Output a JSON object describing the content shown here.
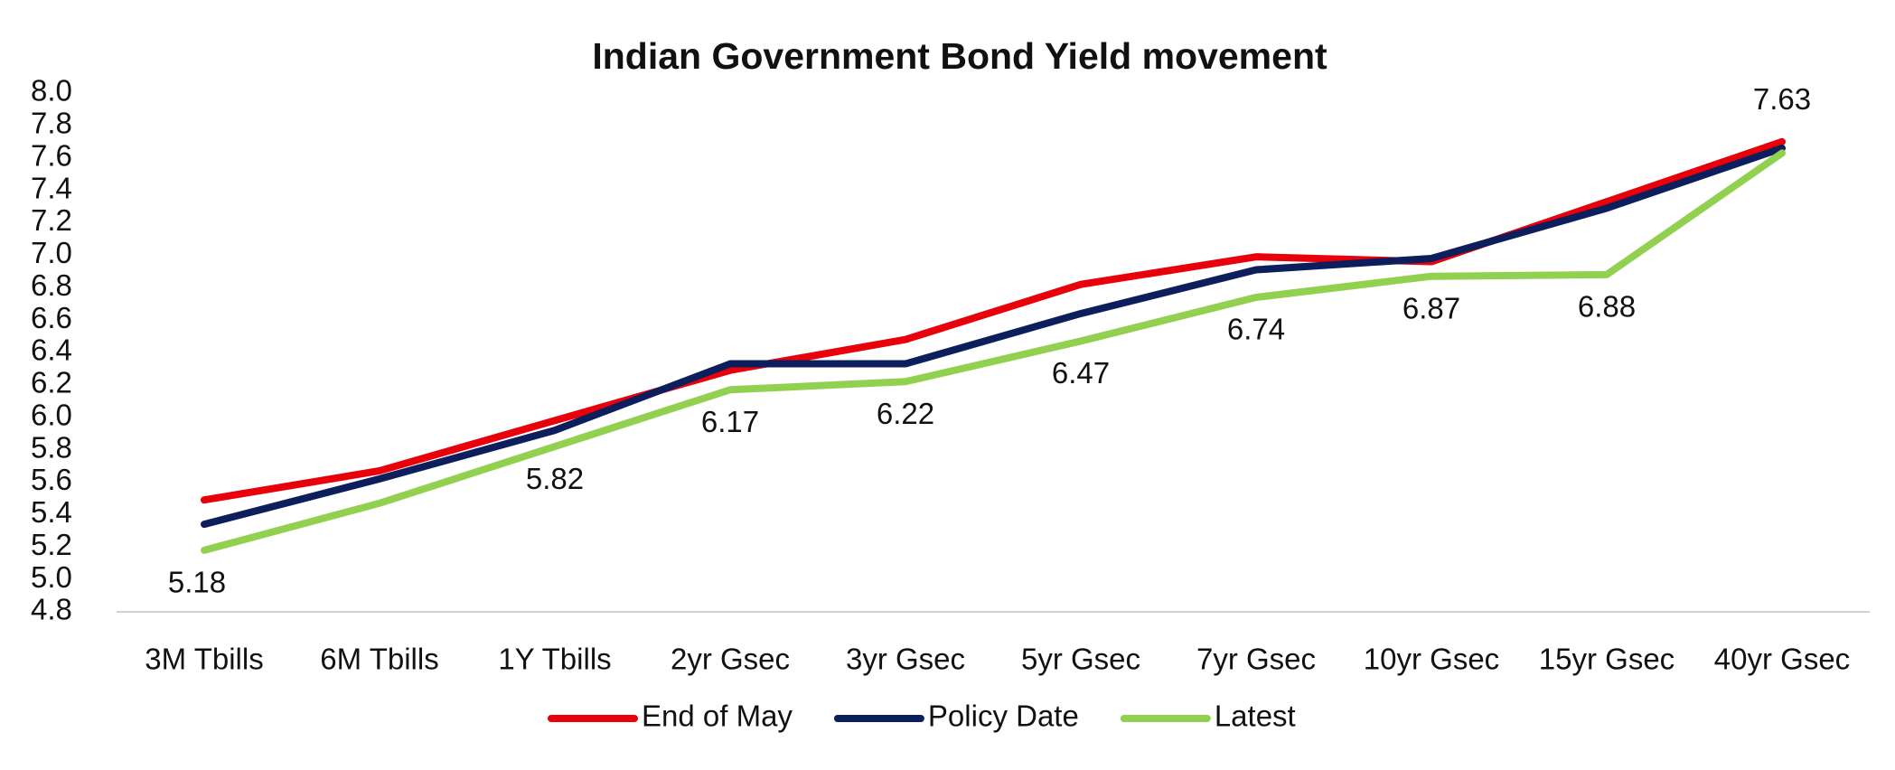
{
  "chart_data": {
    "type": "line",
    "title": "Indian Government Bond Yield movement",
    "categories": [
      "3M Tbills",
      "6M Tbills",
      "1Y Tbills",
      "2yr Gsec",
      "3yr Gsec",
      "5yr Gsec",
      "7yr Gsec",
      "10yr Gsec",
      "15yr Gsec",
      "40yr Gsec"
    ],
    "series": [
      {
        "name": "End of May",
        "color": "#e8000b",
        "values": [
          5.49,
          5.67,
          5.98,
          6.29,
          6.48,
          6.82,
          6.99,
          6.96,
          7.33,
          7.7
        ]
      },
      {
        "name": "Policy Date",
        "color": "#0c1f5c",
        "values": [
          5.34,
          5.62,
          5.92,
          6.33,
          6.33,
          6.64,
          6.91,
          6.98,
          7.29,
          7.66
        ]
      },
      {
        "name": "Latest",
        "color": "#92d050",
        "values": [
          5.18,
          5.47,
          5.82,
          6.17,
          6.22,
          6.47,
          6.74,
          6.87,
          6.88,
          7.63
        ],
        "value_labels": [
          "5.18",
          null,
          "5.82",
          "6.17",
          "6.22",
          "6.47",
          "6.74",
          "6.87",
          "6.88",
          "7.63"
        ]
      }
    ],
    "ylim": [
      4.8,
      8.0
    ],
    "yticks": [
      4.8,
      {
        "value": 5.0,
        "label": "5.0"
      },
      5.2,
      5.4,
      5.6,
      5.8,
      {
        "value": 6.0,
        "label": "6.0"
      },
      6.2,
      6.4,
      6.6,
      6.8,
      {
        "value": 7.0,
        "label": "7.0"
      },
      7.2,
      7.4,
      7.6,
      7.8,
      {
        "value": 8.0,
        "label": "8.0"
      }
    ],
    "grid": false,
    "legend": "bottom"
  }
}
